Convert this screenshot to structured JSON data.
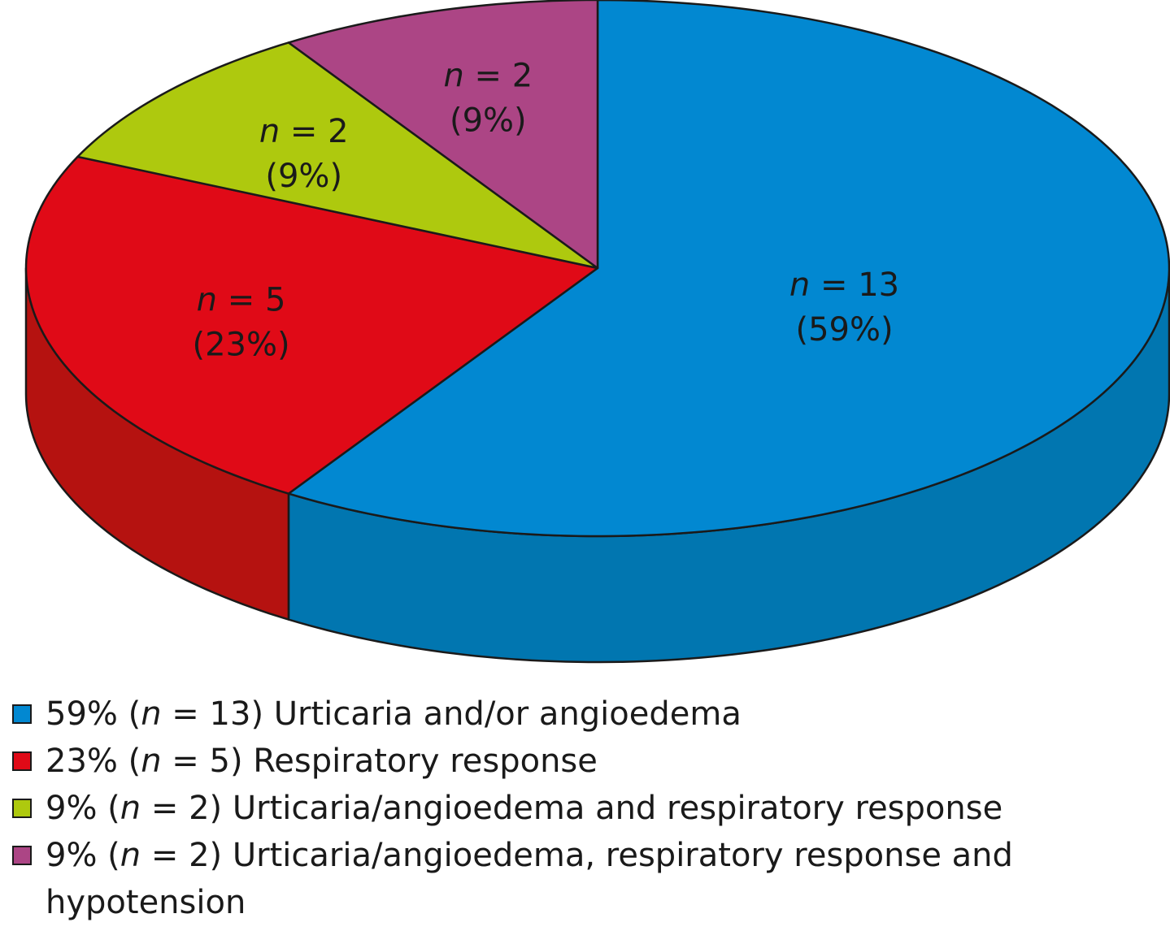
{
  "chart_data": {
    "type": "pie",
    "title": "",
    "slices": [
      {
        "name": "Urticaria and/or angioedema",
        "n": 13,
        "percent": 59,
        "label_n": "n = 13",
        "label_pct": "(59%)",
        "legend": {
          "pre": "59% (",
          "n": "n",
          "post": " = 13) Urticaria and/or angioedema"
        },
        "color": "#0288d1",
        "side_color": "#0176b0"
      },
      {
        "name": "Respiratory response",
        "n": 5,
        "percent": 23,
        "label_n": "n = 5",
        "label_pct": "(23%)",
        "legend": {
          "pre": "23% (",
          "n": "n",
          "post": " = 5) Respiratory response"
        },
        "color": "#e00a17",
        "side_color": "#b51210"
      },
      {
        "name": "Urticaria/angioedema and respiratory response",
        "n": 2,
        "percent": 9,
        "label_n": "n = 2",
        "label_pct": "(9%)",
        "legend": {
          "pre": "9% (",
          "n": "n",
          "post": " = 2) Urticaria/angioedema and respiratory response"
        },
        "color": "#aec90e",
        "side_color": "#8ea40a"
      },
      {
        "name": "Urticaria/angioedema, respiratory response and hypotension",
        "n": 2,
        "percent": 9,
        "label_n": "n = 2",
        "label_pct": "(9%)",
        "legend": {
          "pre": "9% (",
          "n": "n",
          "post": " = 2) Urticaria/angioedema, respiratory response and hypotension"
        },
        "color": "#ac4585",
        "side_color": "#8d376c"
      }
    ],
    "start": "12 o'clock",
    "direction": "clockwise",
    "style": "3d",
    "legend_position": "bottom"
  }
}
